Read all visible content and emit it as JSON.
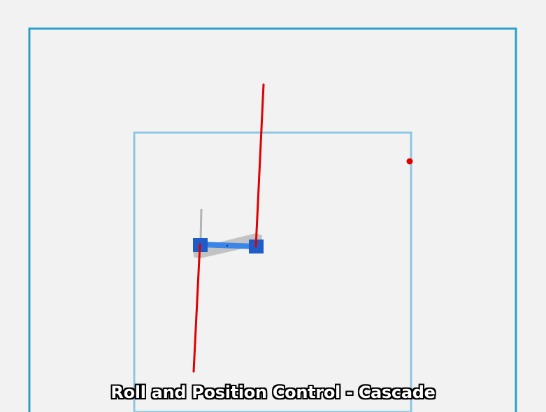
{
  "caption": "Roll and Position Control - Cascade",
  "colors": {
    "background": "#f2f2f2",
    "outer_boundary": "#2aa0c8",
    "inner_boundary": "#8cc8e4",
    "thrust_vector": "#e00000",
    "target_marker": "#e00000",
    "drone_arm": "#3a86e8",
    "drone_rotor": "#1f5cc7",
    "ghost_drone": "#b3b3b3"
  }
}
